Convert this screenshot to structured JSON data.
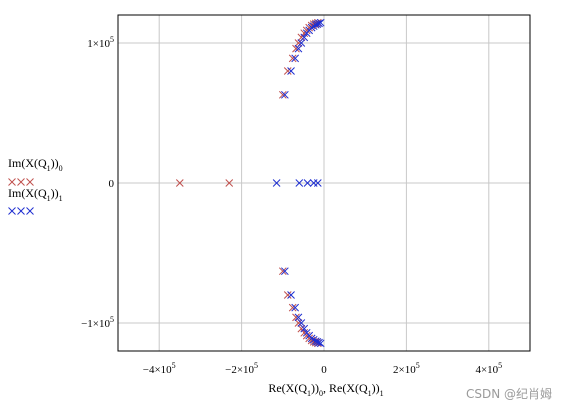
{
  "colors": {
    "series0": "#c0504d",
    "series1": "#1f2fd0",
    "grid": "#c8c8c8",
    "frame": "#000000"
  },
  "chart_data": {
    "type": "scatter",
    "title": "",
    "xlim": [
      -500000,
      500000
    ],
    "ylim": [
      -120000,
      120000
    ],
    "grid": true,
    "legend_position": "left",
    "x_ticks": [
      {
        "value": -400000,
        "mant": "−4×10",
        "exp": "5"
      },
      {
        "value": -200000,
        "mant": "−2×10",
        "exp": "5"
      },
      {
        "value": 0,
        "mant": "0",
        "exp": ""
      },
      {
        "value": 200000,
        "mant": "2×10",
        "exp": "5"
      },
      {
        "value": 400000,
        "mant": "4×10",
        "exp": "5"
      }
    ],
    "y_ticks": [
      {
        "value": 100000,
        "mant": "1×10",
        "exp": "5"
      },
      {
        "value": 0,
        "mant": "0",
        "exp": ""
      },
      {
        "value": -100000,
        "mant": "−1×10",
        "exp": "5"
      }
    ],
    "xlabel": {
      "base1": "Re(X(Q",
      "s1": "1",
      "mid1": "))",
      "s2": "0",
      "sep": ", Re(X(Q",
      "s3": "1",
      "mid2": "))",
      "s4": "1"
    },
    "series": [
      {
        "name": {
          "base": "Im(X(Q",
          "s1": "1",
          "mid": "))",
          "s2": "0"
        },
        "points": [
          [
            -350000,
            0
          ],
          [
            -230000,
            0
          ],
          [
            -100000,
            63000
          ],
          [
            -88000,
            80000
          ],
          [
            -76000,
            89000
          ],
          [
            -68000,
            96000
          ],
          [
            -62000,
            100000
          ],
          [
            -55000,
            104000
          ],
          [
            -48000,
            107000
          ],
          [
            -42000,
            109000
          ],
          [
            -36000,
            111000
          ],
          [
            -30000,
            112500
          ],
          [
            -25000,
            113500
          ],
          [
            -20000,
            114000
          ],
          [
            -15000,
            114500
          ],
          [
            -100000,
            -63000
          ],
          [
            -88000,
            -80000
          ],
          [
            -76000,
            -89000
          ],
          [
            -68000,
            -96000
          ],
          [
            -62000,
            -100000
          ],
          [
            -55000,
            -104000
          ],
          [
            -48000,
            -107000
          ],
          [
            -42000,
            -109000
          ],
          [
            -36000,
            -111000
          ],
          [
            -30000,
            -112500
          ],
          [
            -25000,
            -113500
          ],
          [
            -20000,
            -114000
          ],
          [
            -15000,
            -114500
          ]
        ]
      },
      {
        "name": {
          "base": "Im(X(Q",
          "s1": "1",
          "mid": "))",
          "s2": "1"
        },
        "points": [
          [
            -115000,
            0
          ],
          [
            -60000,
            0
          ],
          [
            -40000,
            0
          ],
          [
            -25000,
            0
          ],
          [
            -15000,
            0
          ],
          [
            -95000,
            63000
          ],
          [
            -80000,
            80000
          ],
          [
            -70000,
            89000
          ],
          [
            -62000,
            96000
          ],
          [
            -55000,
            100000
          ],
          [
            -48000,
            104000
          ],
          [
            -42000,
            107000
          ],
          [
            -36000,
            109000
          ],
          [
            -30000,
            111000
          ],
          [
            -25000,
            112000
          ],
          [
            -20000,
            113000
          ],
          [
            -16000,
            113500
          ],
          [
            -12000,
            114000
          ],
          [
            -8000,
            114500
          ],
          [
            -95000,
            -63000
          ],
          [
            -80000,
            -80000
          ],
          [
            -70000,
            -89000
          ],
          [
            -62000,
            -96000
          ],
          [
            -55000,
            -100000
          ],
          [
            -48000,
            -104000
          ],
          [
            -42000,
            -107000
          ],
          [
            -36000,
            -109000
          ],
          [
            -30000,
            -111000
          ],
          [
            -25000,
            -112000
          ],
          [
            -20000,
            -113000
          ],
          [
            -16000,
            -113500
          ],
          [
            -12000,
            -114000
          ],
          [
            -8000,
            -114500
          ]
        ]
      }
    ]
  },
  "watermark": "CSDN @纪肖姆"
}
